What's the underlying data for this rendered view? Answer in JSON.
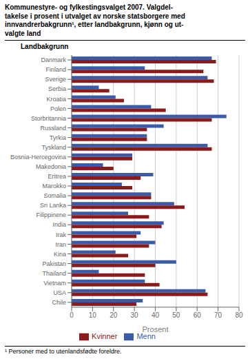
{
  "chart_data": {
    "type": "bar",
    "orientation": "horizontal",
    "title": "Kommunestyre- og fylkestingsvalget 2007. Valgdel-\ntakelse i prosent i utvalget av norske statsborgere med\ninnvandrerbakgrunn¹, etter landbakgrunn, kjønn og ut-\nvalgte land",
    "ylabel": "Landbakgrunn",
    "xlabel": "Prosent",
    "annotations": [
      "¹ Personer med to utenlandsfødte foreldre."
    ],
    "categories": [
      "Danmark",
      "Finland",
      "Sverige",
      "Serbia",
      "Kroatia",
      "Polen",
      "Storbritannia",
      "Russland",
      "Tyrkia",
      "Tyskland",
      "Bosnia-Hercegovina",
      "Makedonia",
      "Eritrea",
      "Marokko",
      "Somalia",
      "Sri Lanka",
      "Filippinene",
      "India",
      "Irak",
      "Iran",
      "Kina",
      "Pakistan",
      "Thailand",
      "Vietnam",
      "USA",
      "Chile"
    ],
    "series": [
      {
        "name": "Menn",
        "color": "#3a5ca8",
        "values": [
          67,
          35,
          65,
          13,
          21,
          38,
          74,
          44,
          36,
          65,
          29,
          15,
          39,
          24,
          38,
          49,
          27,
          44,
          33,
          40,
          21,
          50,
          13,
          35,
          64,
          34
        ]
      },
      {
        "name": "Kvinner",
        "color": "#8b1a1a",
        "values": [
          69,
          63,
          68,
          18,
          25,
          45,
          67,
          36,
          36,
          67,
          29,
          20,
          33,
          29,
          38,
          54,
          37,
          43,
          31,
          37,
          27,
          40,
          35,
          42,
          65,
          31
        ]
      }
    ],
    "xlim": [
      0,
      80
    ],
    "xticks": [
      0,
      10,
      20,
      30,
      40,
      50,
      60,
      70,
      80
    ],
    "grid": true,
    "legend": "bottom"
  }
}
